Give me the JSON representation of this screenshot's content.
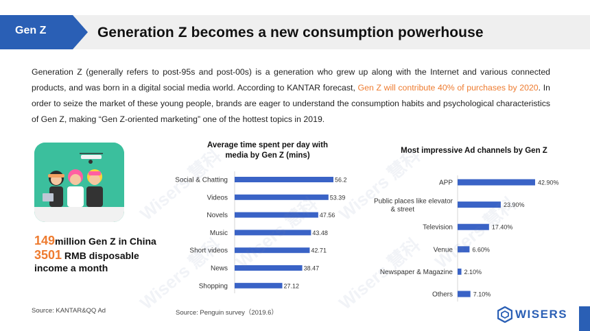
{
  "header": {
    "tag": "Gen Z",
    "title": "Generation Z becomes a new consumption powerhouse",
    "accent_color": "#2a5fb5"
  },
  "intro": {
    "part1": "Generation Z (generally refers to post-95s and post-00s) is a generation who grew up along with the Internet and various connected products, and was born in a digital social media world. According to KANTAR forecast, ",
    "highlight": "Gen Z will contribute 40% of purchases by 2020",
    "part2": ". In order to seize the market of these young people, brands are eager to understand the consumption habits and psychological characteristics of Gen Z, making “Gen Z-oriented marketing” one of the hottest topics in 2019.",
    "highlight_color": "#ee7b2f"
  },
  "stats": {
    "population_number": "149",
    "population_text": "million Gen Z in China",
    "income_number": "3501",
    "income_text_1": " RMB disposable",
    "income_text_2": "income a month"
  },
  "sources": {
    "left": "Source:   KANTAR&QQ Ad",
    "middle": "Source:   Penguin survey（2019.6）"
  },
  "logo": {
    "text": "WISERS"
  },
  "watermark": "Wisers 慧科",
  "chart_data": [
    {
      "type": "bar",
      "orientation": "horizontal",
      "title_line1": "Average time spent per day with",
      "title_line2": "media by Gen Z   (mins)",
      "categories": [
        "Social & Chatting",
        "Videos",
        "Novels",
        "Music",
        "Short videos",
        "News",
        "Shopping"
      ],
      "values": [
        56.2,
        53.39,
        47.56,
        43.48,
        42.71,
        38.47,
        27.12
      ],
      "labels": [
        "56.2",
        "53.39",
        "47.56",
        "43.48",
        "42.71",
        "38.47",
        "27.12"
      ],
      "xlim": [
        0,
        56.2
      ],
      "color": "#3a63c6"
    },
    {
      "type": "bar",
      "orientation": "horizontal",
      "title": "Most impressive Ad channels by Gen Z",
      "categories": [
        "APP",
        "Public places like elevator & street",
        "Television",
        "Venue",
        "Newspaper & Magazine",
        "Others"
      ],
      "values": [
        42.9,
        23.9,
        17.4,
        6.6,
        2.1,
        7.1
      ],
      "labels": [
        "42.90%",
        "23.90%",
        "17.40%",
        "6.60%",
        "2.10%",
        "7.10%"
      ],
      "xlim": [
        0,
        42.9
      ],
      "color": "#3a63c6"
    }
  ]
}
